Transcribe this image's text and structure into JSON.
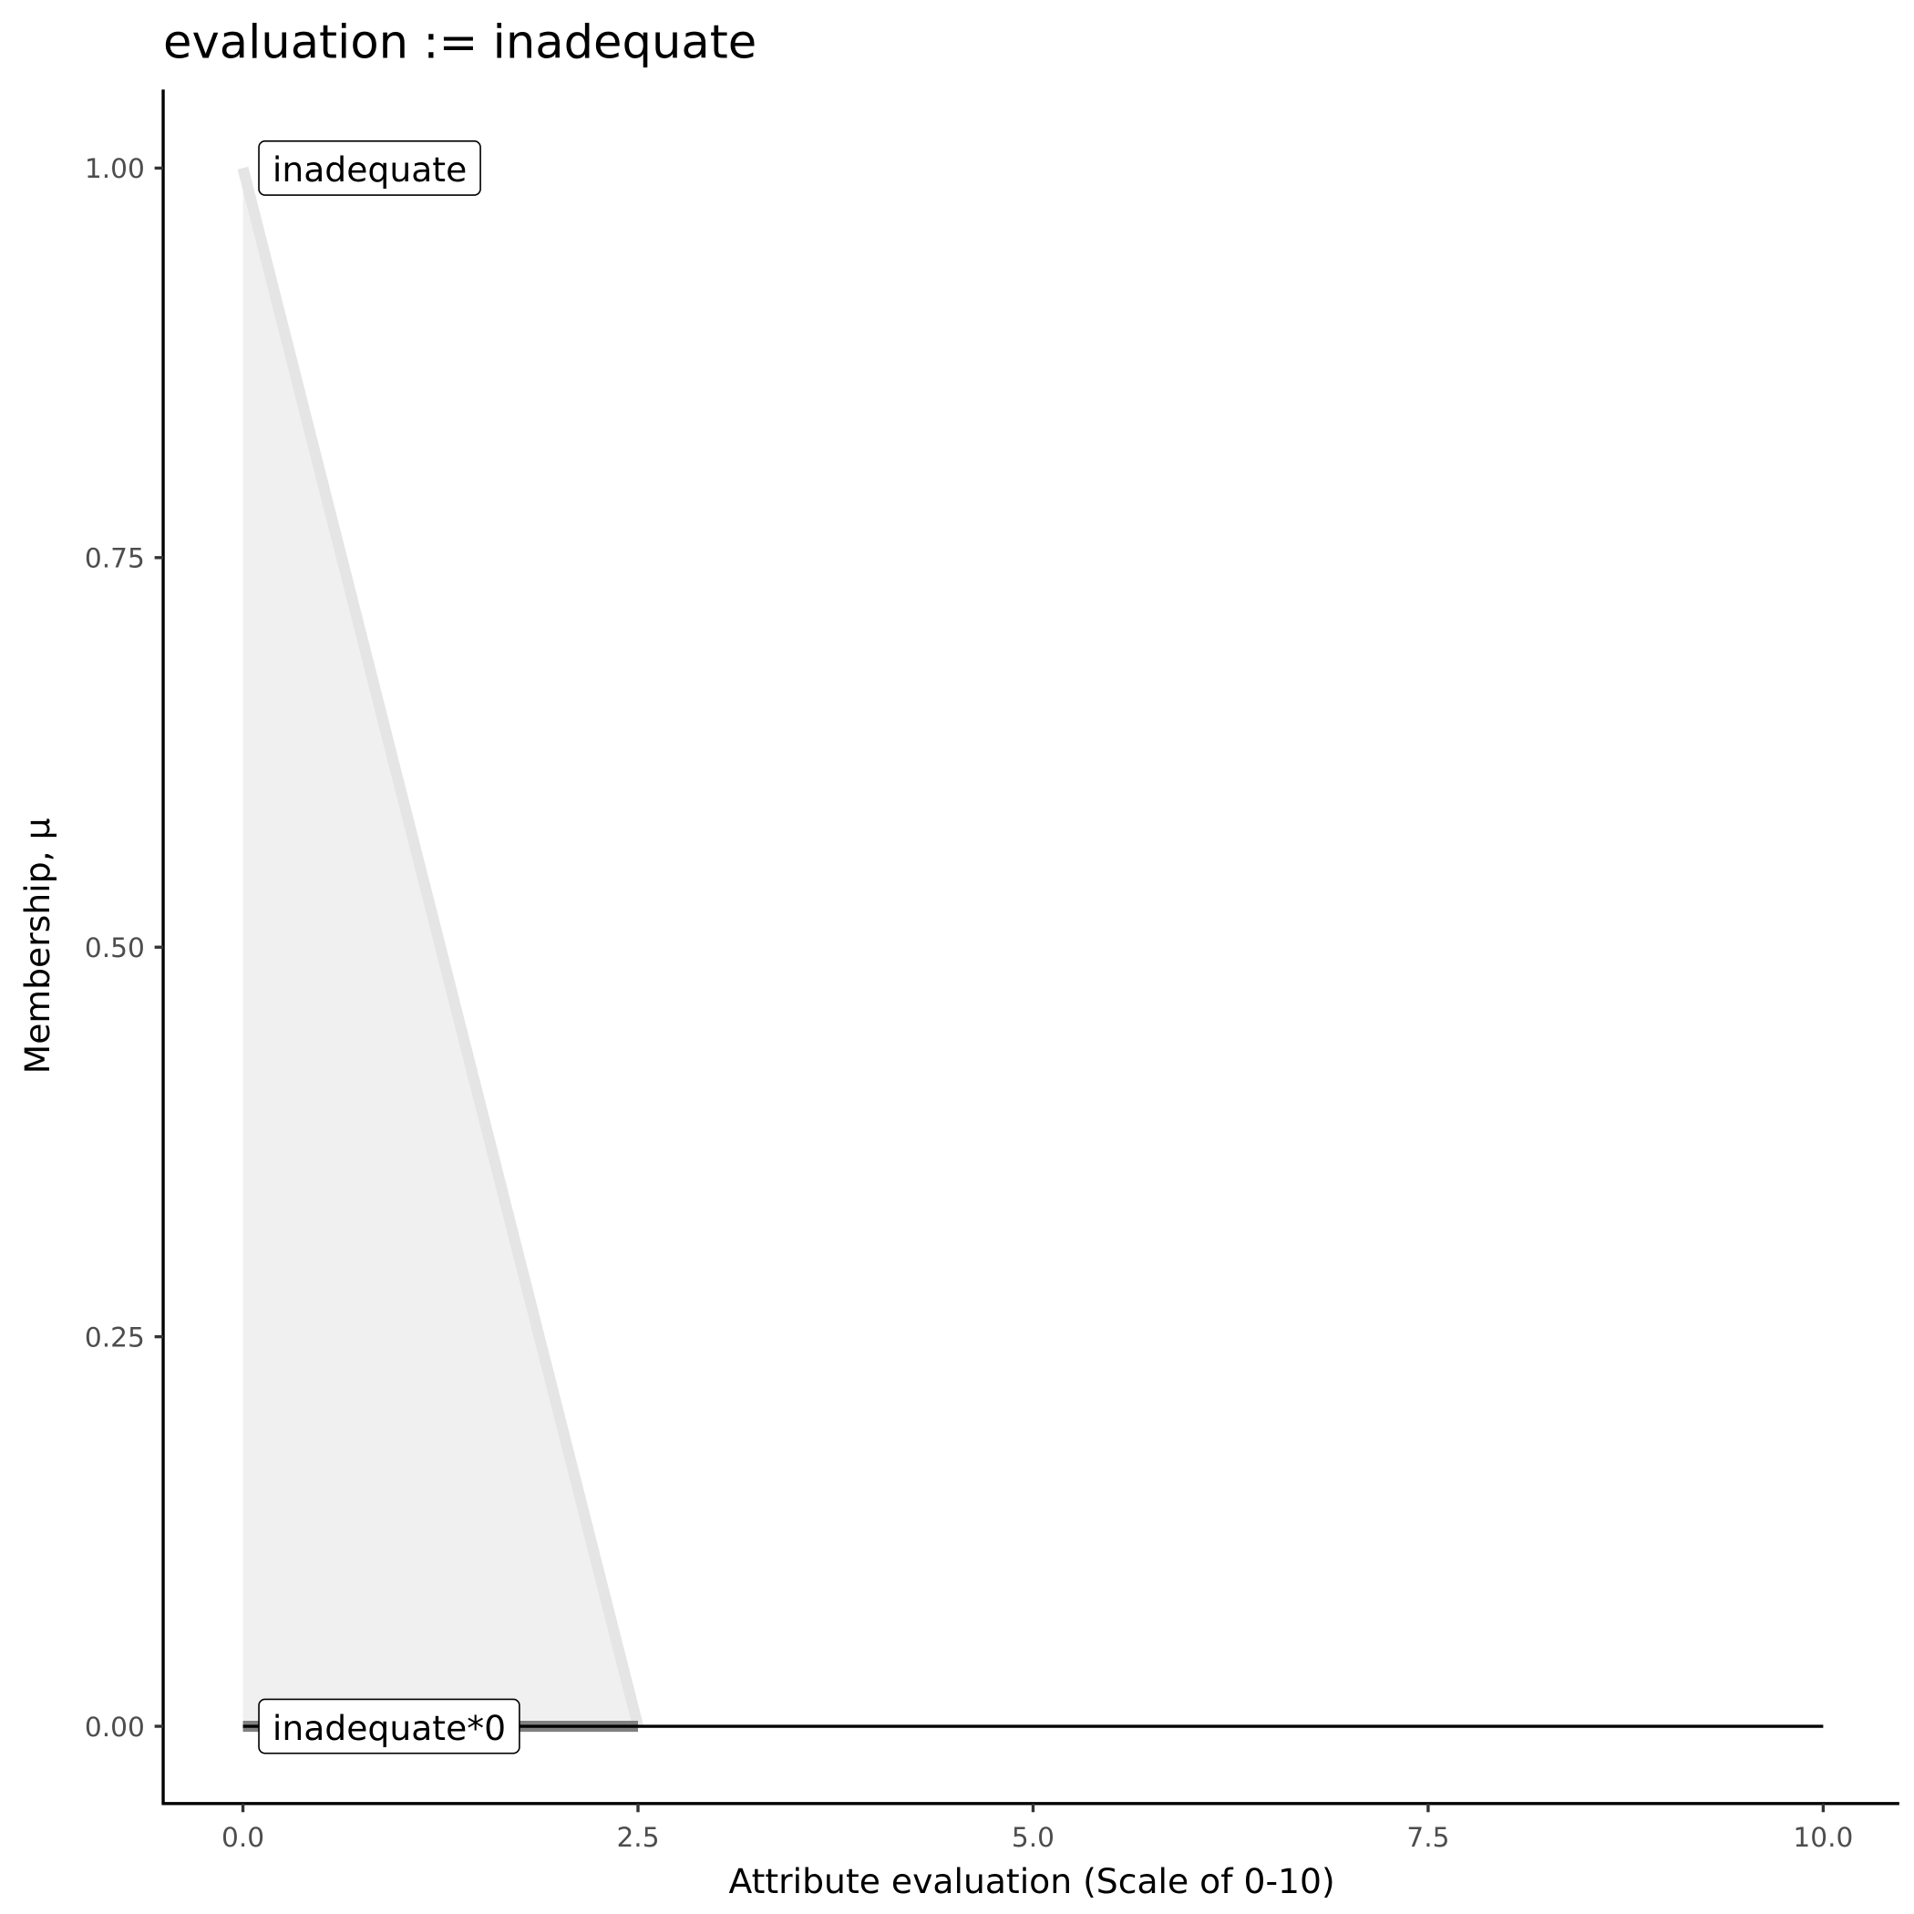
{
  "chart_data": {
    "type": "area",
    "title": "evaluation := inadequate",
    "xlabel": "Attribute evaluation (Scale of 0-10)",
    "ylabel": "Membership, μ",
    "xlim": [
      -0.5,
      10.5
    ],
    "ylim": [
      -0.05,
      1.05
    ],
    "xticks": [
      0,
      2.5,
      5,
      7.5,
      10
    ],
    "xtick_labels": [
      "0.0",
      "2.5",
      "5.0",
      "7.5",
      "10.0"
    ],
    "yticks": [
      0,
      0.25,
      0.5,
      0.75,
      1
    ],
    "ytick_labels": [
      "0.00",
      "0.25",
      "0.50",
      "0.75",
      "1.00"
    ],
    "grid": false,
    "series": [
      {
        "name": "inadequate",
        "x": [
          0,
          2.5
        ],
        "y": [
          1,
          0
        ],
        "color": "#e5e5e5",
        "fill": "#f0f0f0"
      },
      {
        "name": "inadequate*0",
        "x": [
          0,
          2.5
        ],
        "y": [
          0,
          0
        ],
        "color": "#808080"
      },
      {
        "x": [
          0,
          10
        ],
        "y": [
          0,
          0
        ],
        "color": "#000000"
      }
    ],
    "annotations": [
      {
        "text": "inadequate",
        "x": 0,
        "y": 1
      },
      {
        "text": "inadequate*0",
        "x": 0,
        "y": 0
      }
    ]
  }
}
